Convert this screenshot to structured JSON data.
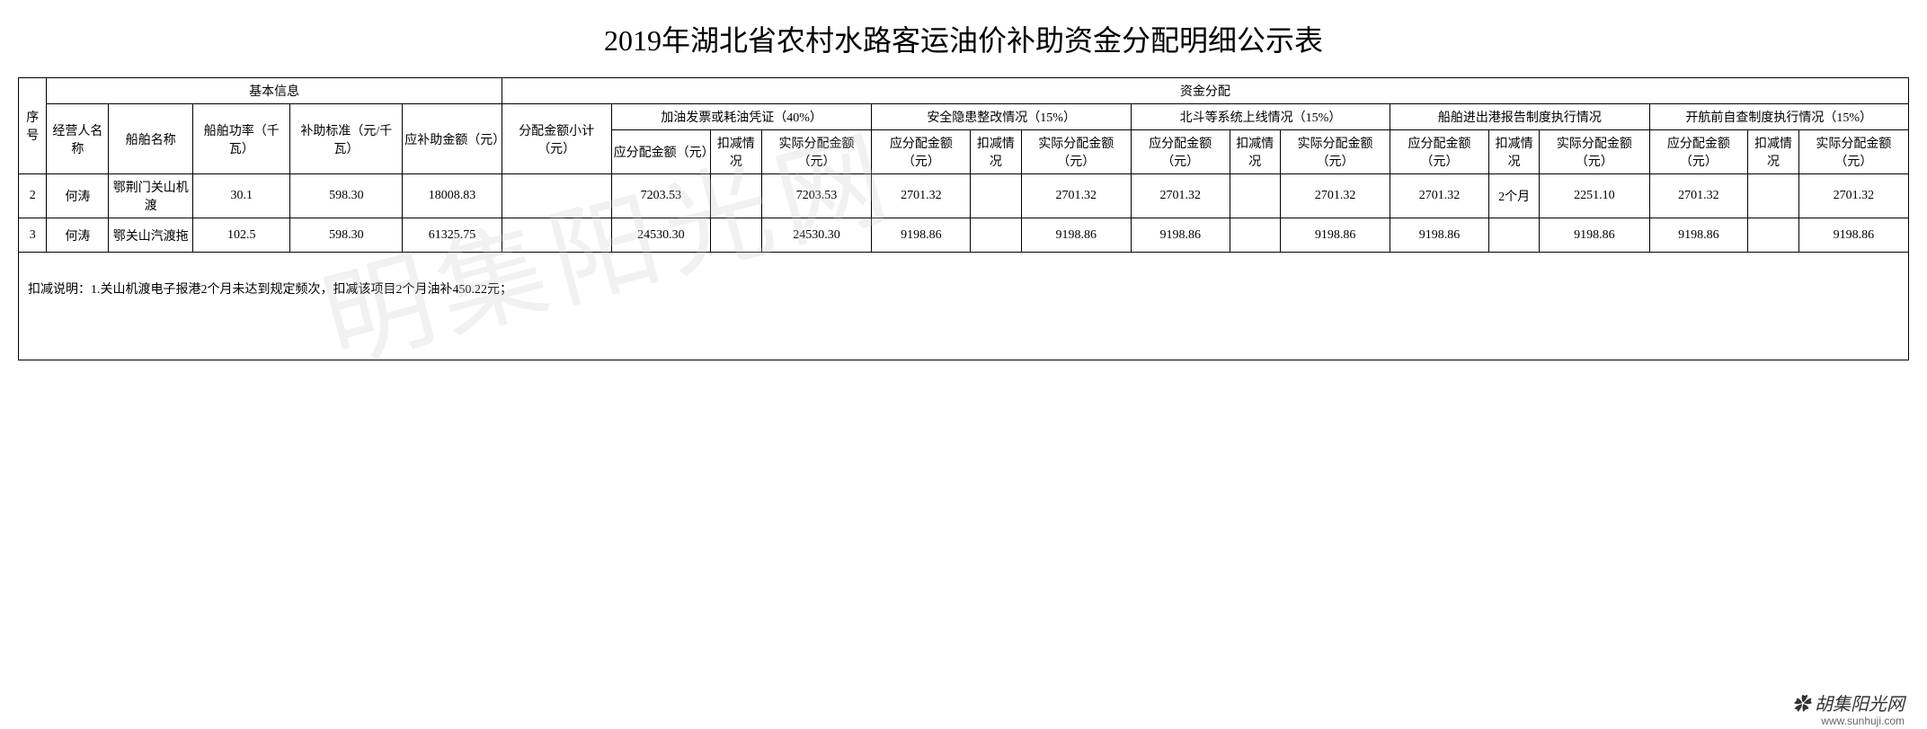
{
  "title": "2019年湖北省农村水路客运油价补助资金分配明细公示表",
  "headers": {
    "basic_info": "基本信息",
    "fund_allocation": "资金分配",
    "seq": "序号",
    "operator_name": "经营人名称",
    "vessel_name": "船舶名称",
    "vessel_power": "船舶功率（千瓦）",
    "subsidy_standard": "补助标准（元/千瓦）",
    "subsidy_amount": "应补助金额（元）",
    "allocation_subtotal": "分配金额小计（元）",
    "fuel_invoice": "加油发票或耗油凭证（40%）",
    "safety_rectification": "安全隐患整改情况（15%）",
    "beidou_system": "北斗等系统上线情况（15%）",
    "port_report": "船舶进出港报告制度执行情况",
    "self_inspection": "开航前自查制度执行情况（15%）",
    "should_allocate": "应分配金额（元）",
    "deduction": "扣减情况",
    "actual_allocate": "实际分配金额（元）"
  },
  "rows": [
    {
      "seq": "2",
      "operator": "何涛",
      "vessel": "鄂荆门关山机渡",
      "power": "30.1",
      "standard": "598.30",
      "subsidy": "18008.83",
      "subtotal": "",
      "fuel_should": "7203.53",
      "fuel_deduct": "",
      "fuel_actual": "7203.53",
      "safety_should": "2701.32",
      "safety_deduct": "",
      "safety_actual": "2701.32",
      "beidou_should": "2701.32",
      "beidou_deduct": "",
      "beidou_actual": "2701.32",
      "port_should": "2701.32",
      "port_deduct": "2个月",
      "port_actual": "2251.10",
      "self_should": "2701.32",
      "self_deduct": "",
      "self_actual": "2701.32"
    },
    {
      "seq": "3",
      "operator": "何涛",
      "vessel": "鄂关山汽渡拖",
      "power": "102.5",
      "standard": "598.30",
      "subsidy": "61325.75",
      "subtotal": "",
      "fuel_should": "24530.30",
      "fuel_deduct": "",
      "fuel_actual": "24530.30",
      "safety_should": "9198.86",
      "safety_deduct": "",
      "safety_actual": "9198.86",
      "beidou_should": "9198.86",
      "beidou_deduct": "",
      "beidou_actual": "9198.86",
      "port_should": "9198.86",
      "port_deduct": "",
      "port_actual": "9198.86",
      "self_should": "9198.86",
      "self_deduct": "",
      "self_actual": "9198.86"
    }
  ],
  "note": "扣减说明：1.关山机渡电子报港2个月未达到规定频次，扣减该项目2个月油补450.22元；",
  "watermark": "明集阳光网",
  "footer_logo": "✿ 胡集阳光网",
  "footer_url": "www.sunhuji.com"
}
